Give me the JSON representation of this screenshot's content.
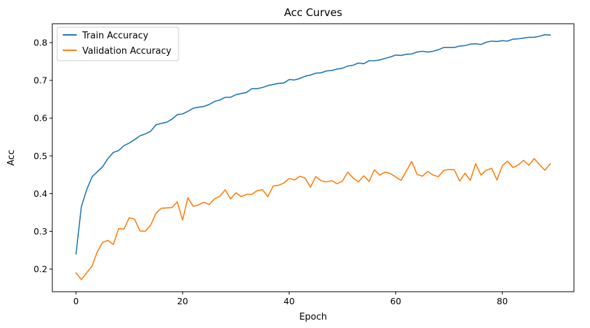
{
  "colors": {
    "train": "#1f77b4",
    "validation": "#ff7f0e"
  },
  "chart_data": {
    "type": "line",
    "title": "Acc Curves",
    "xlabel": "Epoch",
    "ylabel": "Acc",
    "xlim": [
      -4.45,
      93.45
    ],
    "ylim": [
      0.14,
      0.85
    ],
    "xticks": [
      0,
      20,
      40,
      60,
      80
    ],
    "xtick_labels": [
      "0",
      "20",
      "40",
      "60",
      "80"
    ],
    "yticks": [
      0.2,
      0.3,
      0.4,
      0.5,
      0.6,
      0.7,
      0.8
    ],
    "ytick_labels": [
      "0.2",
      "0.3",
      "0.4",
      "0.5",
      "0.6",
      "0.7",
      "0.8"
    ],
    "grid": false,
    "legend": "top-left",
    "series": [
      {
        "name": "Train Accuracy",
        "values": [
          0.24,
          0.365,
          0.41,
          0.444,
          0.458,
          0.471,
          0.493,
          0.509,
          0.514,
          0.527,
          0.534,
          0.543,
          0.553,
          0.558,
          0.565,
          0.582,
          0.586,
          0.589,
          0.597,
          0.609,
          0.611,
          0.618,
          0.626,
          0.629,
          0.631,
          0.636,
          0.644,
          0.648,
          0.655,
          0.655,
          0.662,
          0.665,
          0.668,
          0.678,
          0.678,
          0.681,
          0.686,
          0.689,
          0.692,
          0.693,
          0.702,
          0.701,
          0.705,
          0.711,
          0.714,
          0.719,
          0.72,
          0.725,
          0.726,
          0.73,
          0.732,
          0.738,
          0.74,
          0.746,
          0.744,
          0.752,
          0.752,
          0.754,
          0.758,
          0.762,
          0.767,
          0.766,
          0.769,
          0.77,
          0.775,
          0.777,
          0.775,
          0.777,
          0.781,
          0.787,
          0.787,
          0.787,
          0.791,
          0.792,
          0.796,
          0.797,
          0.795,
          0.801,
          0.804,
          0.803,
          0.805,
          0.804,
          0.809,
          0.81,
          0.812,
          0.814,
          0.814,
          0.817,
          0.821,
          0.82
        ]
      },
      {
        "name": "Validation Accuracy",
        "values": [
          0.19,
          0.172,
          0.19,
          0.208,
          0.246,
          0.271,
          0.276,
          0.265,
          0.307,
          0.306,
          0.336,
          0.332,
          0.301,
          0.3,
          0.316,
          0.348,
          0.361,
          0.362,
          0.363,
          0.378,
          0.33,
          0.389,
          0.366,
          0.37,
          0.377,
          0.371,
          0.386,
          0.393,
          0.41,
          0.386,
          0.402,
          0.392,
          0.398,
          0.398,
          0.408,
          0.41,
          0.392,
          0.42,
          0.422,
          0.428,
          0.44,
          0.436,
          0.446,
          0.441,
          0.417,
          0.445,
          0.434,
          0.431,
          0.434,
          0.426,
          0.433,
          0.457,
          0.441,
          0.431,
          0.447,
          0.432,
          0.463,
          0.449,
          0.457,
          0.453,
          0.444,
          0.435,
          0.46,
          0.485,
          0.451,
          0.446,
          0.459,
          0.449,
          0.445,
          0.461,
          0.464,
          0.463,
          0.433,
          0.454,
          0.435,
          0.479,
          0.449,
          0.462,
          0.467,
          0.436,
          0.474,
          0.486,
          0.469,
          0.476,
          0.488,
          0.475,
          0.493,
          0.476,
          0.462,
          0.479
        ]
      }
    ]
  }
}
